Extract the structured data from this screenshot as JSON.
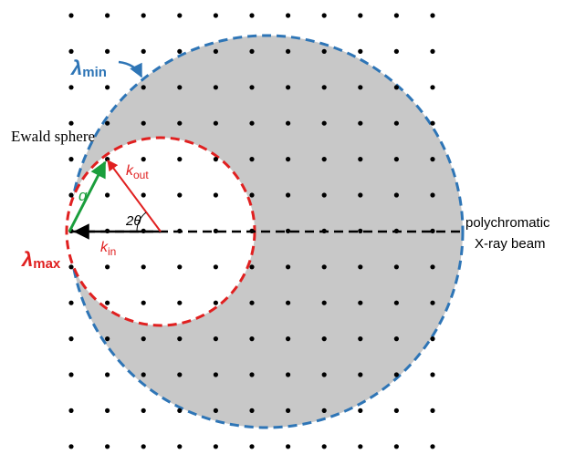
{
  "labels": {
    "lambda_min_symbol": "λ",
    "lambda_min_sub": "min",
    "lambda_max_symbol": "λ",
    "lambda_max_sub": "max",
    "ewald_sphere": "Ewald sphere",
    "k_out_symbol": "k",
    "k_out_sub": "out",
    "k_in_symbol": "k",
    "k_in_sub": "in",
    "q": "q",
    "two_theta": "2θ",
    "beam_line1": "polychromatic",
    "beam_line2": "X-ray beam"
  },
  "colors": {
    "shaded_region": "#c8c8c8",
    "lambda_min": "#2e75b6",
    "lambda_max": "#e02020",
    "q_vector": "#1a9e3c",
    "beam": "#000000",
    "lattice_point": "#000000"
  }
}
